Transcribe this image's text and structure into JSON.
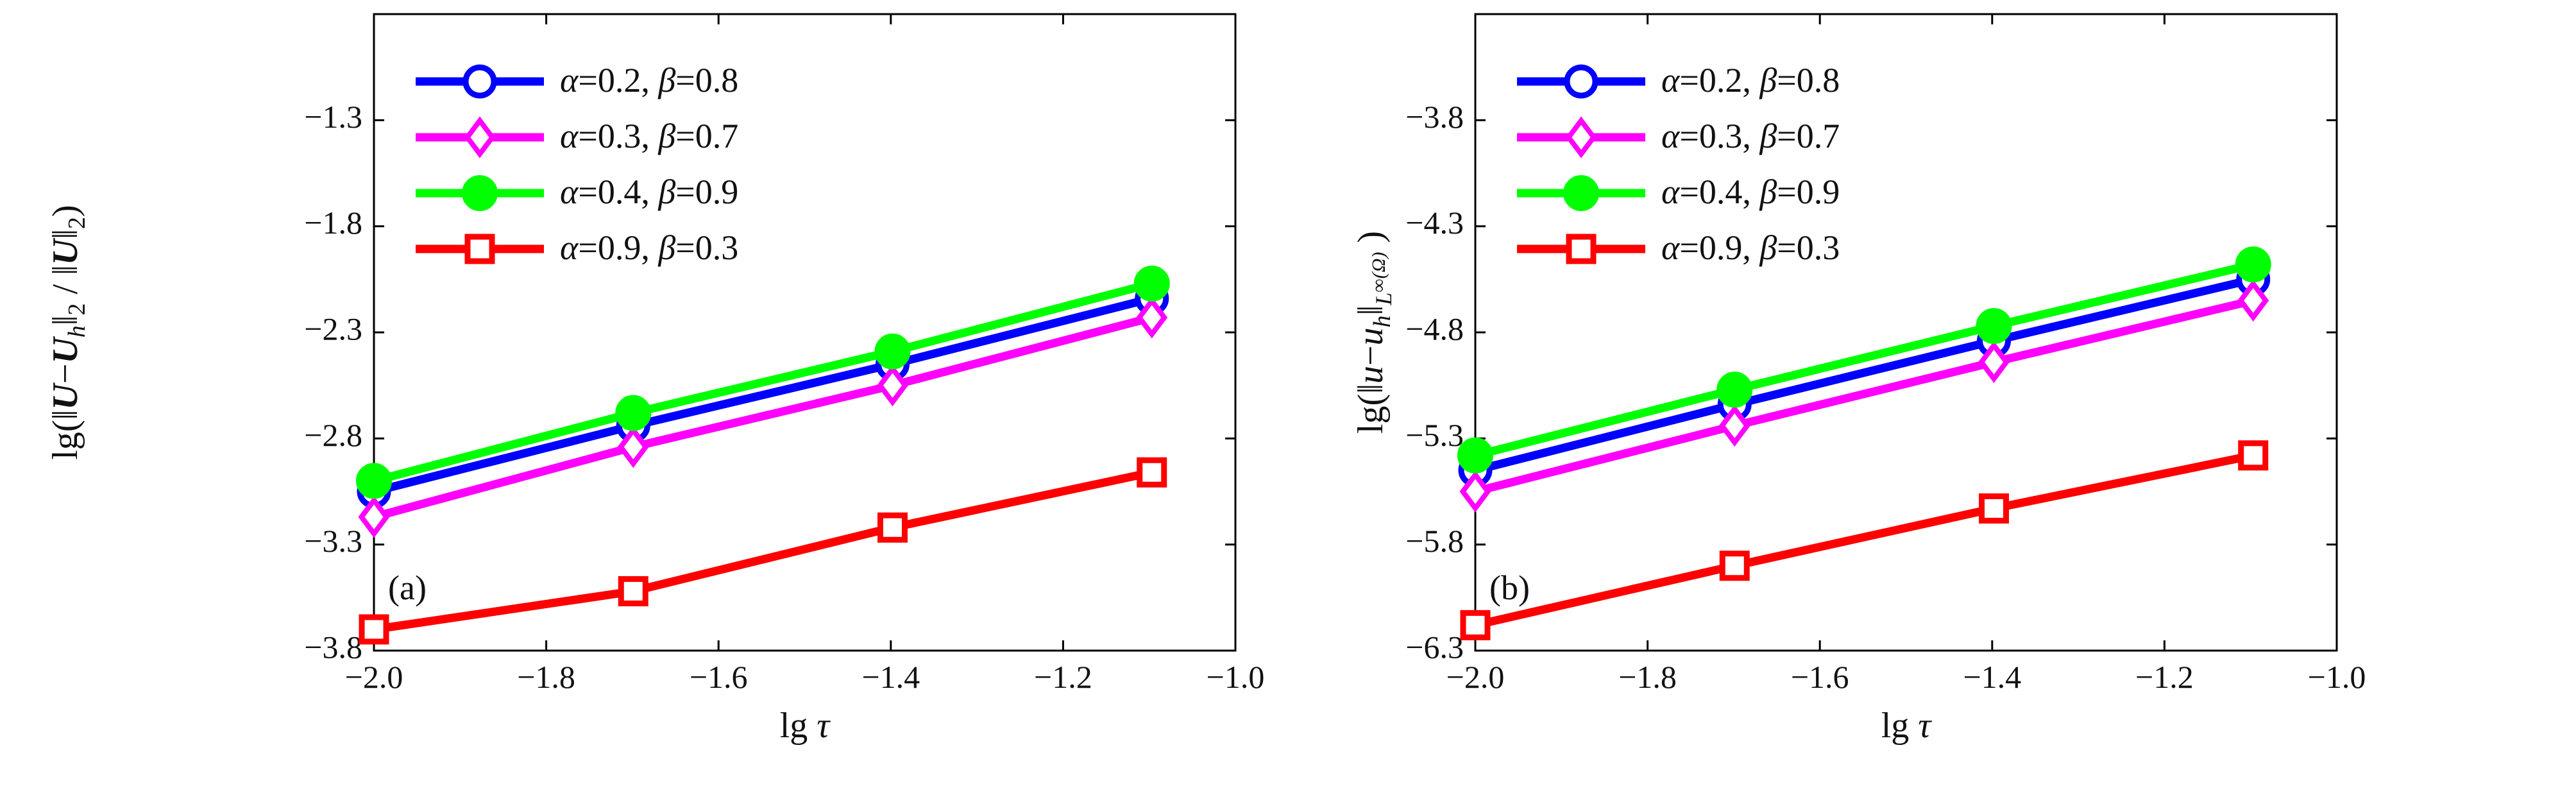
{
  "chart_data": [
    {
      "panel": "(a)",
      "type": "line",
      "xlabel": "lg τ",
      "ylabel": "lg(‖U−U_h‖₂ / ‖U‖₂)",
      "xlim": [
        -2.0,
        -1.0
      ],
      "ylim": [
        -3.8,
        -0.8
      ],
      "xticks": [
        "−2.0",
        "−1.8",
        "−1.6",
        "−1.4",
        "−1.2",
        "−1.0"
      ],
      "yticks": [
        "−1.3",
        "−1.8",
        "−2.3",
        "−2.8",
        "−3.3",
        "−3.8"
      ],
      "x": [
        -2.0,
        -1.699,
        -1.398,
        -1.097
      ],
      "series": [
        {
          "name": "α=0.2, β=0.8",
          "color": "#0000ff",
          "marker": "circle-open",
          "values": [
            -3.05,
            -2.74,
            -2.45,
            -2.14
          ]
        },
        {
          "name": "α=0.3, β=0.7",
          "color": "#ff00ff",
          "marker": "diamond-open",
          "values": [
            -3.17,
            -2.84,
            -2.55,
            -2.23
          ]
        },
        {
          "name": "α=0.4, β=0.9",
          "color": "#00ff00",
          "marker": "circle-filled",
          "values": [
            -3.0,
            -2.68,
            -2.39,
            -2.07
          ]
        },
        {
          "name": "α=0.9, β=0.3",
          "color": "#ff0000",
          "marker": "square-open",
          "values": [
            -3.7,
            -3.52,
            -3.22,
            -2.96
          ]
        }
      ],
      "legend": "top-left",
      "grid": false
    },
    {
      "panel": "(b)",
      "type": "line",
      "xlabel": "lg τ",
      "ylabel": "lg(‖u−u_h‖_{L∞(Ω)})",
      "xlim": [
        -2.0,
        -1.0
      ],
      "ylim": [
        -6.3,
        -3.3
      ],
      "xticks": [
        "−2.0",
        "−1.8",
        "−1.6",
        "−1.4",
        "−1.2",
        "−1.0"
      ],
      "yticks": [
        "−3.8",
        "−4.3",
        "−4.8",
        "−5.3",
        "−5.8",
        "−6.3"
      ],
      "x": [
        -2.0,
        -1.699,
        -1.398,
        -1.097
      ],
      "series": [
        {
          "name": "α=0.2, β=0.8",
          "color": "#0000ff",
          "marker": "circle-open",
          "values": [
            -5.45,
            -5.14,
            -4.84,
            -4.55
          ]
        },
        {
          "name": "α=0.3, β=0.7",
          "color": "#ff00ff",
          "marker": "diamond-open",
          "values": [
            -5.55,
            -5.24,
            -4.94,
            -4.65
          ]
        },
        {
          "name": "α=0.4, β=0.9",
          "color": "#00ff00",
          "marker": "circle-filled",
          "values": [
            -5.38,
            -5.07,
            -4.77,
            -4.48
          ]
        },
        {
          "name": "α=0.9, β=0.3",
          "color": "#ff0000",
          "marker": "square-open",
          "values": [
            -6.18,
            -5.9,
            -5.63,
            -5.38
          ]
        }
      ],
      "legend": "top-left",
      "grid": false
    }
  ]
}
